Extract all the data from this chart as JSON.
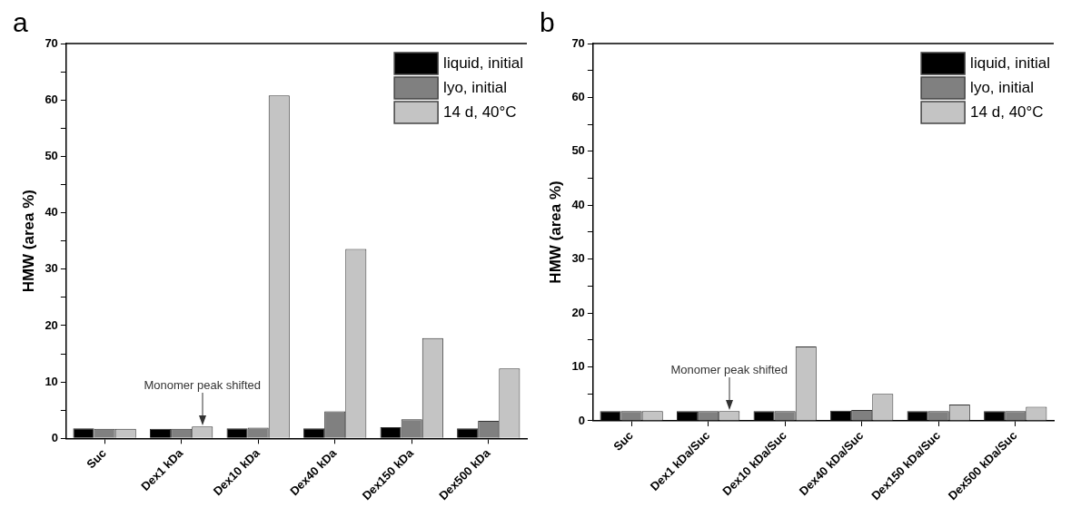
{
  "chart_data": [
    {
      "type": "bar",
      "title": "a",
      "ylabel": "HMW (area %)",
      "categories": [
        "Suc",
        "Dex1 kDa",
        "Dex10 kDa",
        "Dex40 kDa",
        "Dex150 kDa",
        "Dex500 kDa"
      ],
      "series": [
        {
          "name": "liquid, initial",
          "color": "#000000",
          "values": [
            1.8,
            1.7,
            1.8,
            1.8,
            2.0,
            1.8
          ]
        },
        {
          "name": "lyo, initial",
          "color": "#808080",
          "values": [
            1.7,
            1.7,
            1.9,
            4.8,
            3.4,
            3.1
          ]
        },
        {
          "name": "14 d, 40°C",
          "color": "#c4c4c4",
          "values": [
            1.7,
            2.1,
            60.8,
            33.6,
            17.8,
            12.4
          ]
        }
      ],
      "ylim": [
        0,
        70
      ],
      "yticks": [
        0,
        {
          "value": 5,
          "label": null
        },
        10,
        {
          "value": 15,
          "label": null
        },
        20,
        {
          "value": 25,
          "label": null
        },
        30,
        {
          "value": 35,
          "label": null
        },
        40,
        {
          "value": 45,
          "label": null
        },
        50,
        {
          "value": 55,
          "label": null
        },
        60,
        {
          "value": 65,
          "label": null
        },
        70
      ],
      "grid": false,
      "legend": "top right",
      "annotations": [
        {
          "text": "Monomer peak shifted",
          "x": "Dex1 kDa",
          "y": 2.1
        }
      ]
    },
    {
      "type": "bar",
      "title": "b",
      "ylabel": "HMW (area %)",
      "categories": [
        "Suc",
        "Dex1 kDa/Suc",
        "Dex10 kDa/Suc",
        "Dex40 kDa/Suc",
        "Dex150 kDa/Suc",
        "Dex500 kDa/Suc"
      ],
      "series": [
        {
          "name": "liquid, initial",
          "color": "#000000",
          "values": [
            1.8,
            1.8,
            1.8,
            1.9,
            1.8,
            1.8
          ]
        },
        {
          "name": "lyo, initial",
          "color": "#808080",
          "values": [
            1.8,
            1.8,
            1.8,
            2.0,
            1.8,
            1.8
          ]
        },
        {
          "name": "14 d, 40°C",
          "color": "#c4c4c4",
          "values": [
            1.8,
            1.8,
            13.8,
            5.0,
            3.0,
            2.6
          ]
        }
      ],
      "ylim": [
        0,
        70
      ],
      "yticks": [
        0,
        {
          "value": 5,
          "label": null
        },
        10,
        {
          "value": 15,
          "label": null
        },
        20,
        {
          "value": 25,
          "label": null
        },
        30,
        {
          "value": 35,
          "label": null
        },
        40,
        {
          "value": 45,
          "label": null
        },
        50,
        {
          "value": 55,
          "label": null
        },
        60,
        {
          "value": 65,
          "label": null
        },
        70
      ],
      "grid": false,
      "legend": "top right",
      "annotations": [
        {
          "text": "Monomer peak shifted",
          "x": "Dex1 kDa/Suc",
          "y": 1.8
        }
      ]
    }
  ]
}
